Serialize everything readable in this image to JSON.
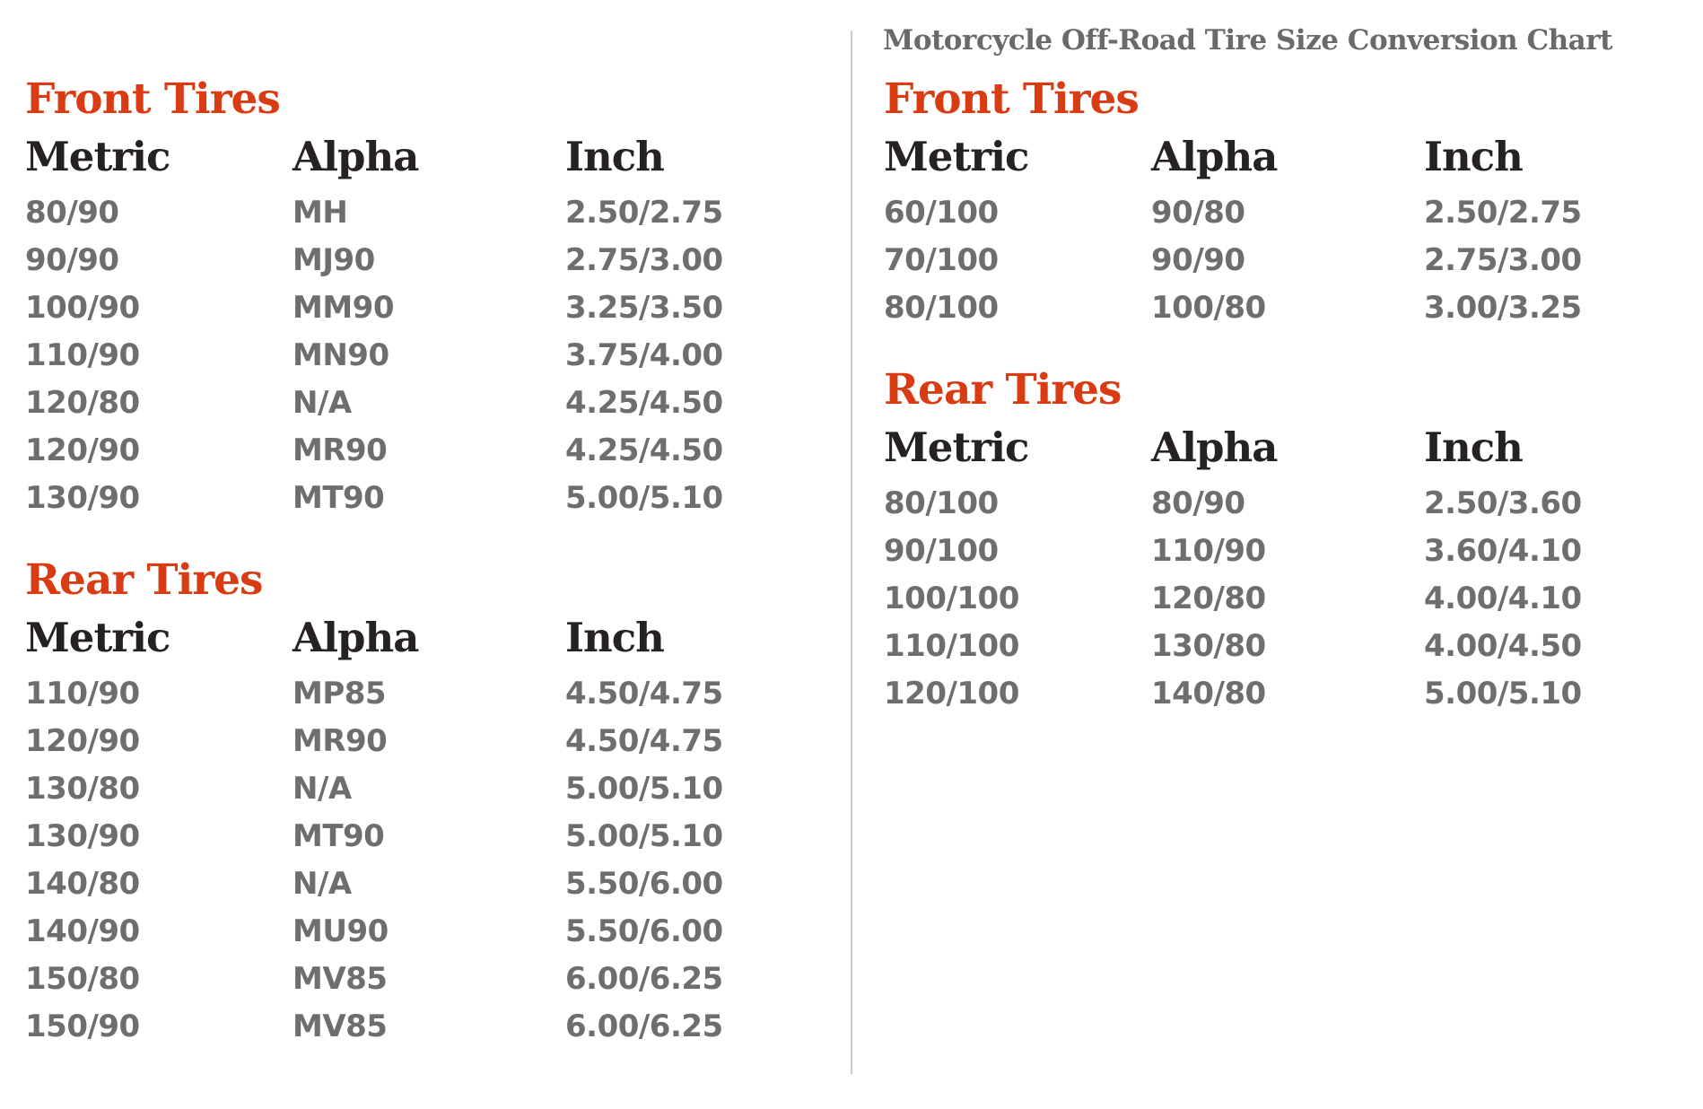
{
  "colors": {
    "accent": "#d93b12",
    "header_ink": "#262122",
    "value_gray": "#6e6e70",
    "title_gray": "#6a696b",
    "divider": "#cbcbcb",
    "background": "#ffffff"
  },
  "chart_data": {
    "type": "table",
    "title": "Motorcycle Off-Road Tire Size Conversion Chart",
    "panels": [
      {
        "name": "street-tire-size-conversion",
        "sections": [
          {
            "heading": "Front Tires",
            "headers": [
              "Metric",
              "Alpha",
              "Inch"
            ],
            "rows": [
              [
                "80/90",
                "MH",
                "2.50/2.75"
              ],
              [
                "90/90",
                "MJ90",
                "2.75/3.00"
              ],
              [
                "100/90",
                "MM90",
                "3.25/3.50"
              ],
              [
                "110/90",
                "MN90",
                "3.75/4.00"
              ],
              [
                "120/80",
                "N/A",
                "4.25/4.50"
              ],
              [
                "120/90",
                "MR90",
                "4.25/4.50"
              ],
              [
                "130/90",
                "MT90",
                "5.00/5.10"
              ]
            ]
          },
          {
            "heading": "Rear Tires",
            "headers": [
              "Metric",
              "Alpha",
              "Inch"
            ],
            "rows": [
              [
                "110/90",
                "MP85",
                "4.50/4.75"
              ],
              [
                "120/90",
                "MR90",
                "4.50/4.75"
              ],
              [
                "130/80",
                "N/A",
                "5.00/5.10"
              ],
              [
                "130/90",
                "MT90",
                "5.00/5.10"
              ],
              [
                "140/80",
                "N/A",
                "5.50/6.00"
              ],
              [
                "140/90",
                "MU90",
                "5.50/6.00"
              ],
              [
                "150/80",
                "MV85",
                "6.00/6.25"
              ],
              [
                "150/90",
                "MV85",
                "6.00/6.25"
              ]
            ]
          }
        ]
      },
      {
        "name": "off-road-tire-size-conversion",
        "sections": [
          {
            "heading": "Front Tires",
            "headers": [
              "Metric",
              "Alpha",
              "Inch"
            ],
            "rows": [
              [
                "60/100",
                "90/80",
                "2.50/2.75"
              ],
              [
                "70/100",
                "90/90",
                "2.75/3.00"
              ],
              [
                "80/100",
                "100/80",
                "3.00/3.25"
              ]
            ]
          },
          {
            "heading": "Rear Tires",
            "headers": [
              "Metric",
              "Alpha",
              "Inch"
            ],
            "rows": [
              [
                "80/100",
                "80/90",
                "2.50/3.60"
              ],
              [
                "90/100",
                "110/90",
                "3.60/4.10"
              ],
              [
                "100/100",
                "120/80",
                "4.00/4.10"
              ],
              [
                "110/100",
                "130/80",
                "4.00/4.50"
              ],
              [
                "120/100",
                "140/80",
                "5.00/5.10"
              ]
            ]
          }
        ]
      }
    ]
  }
}
